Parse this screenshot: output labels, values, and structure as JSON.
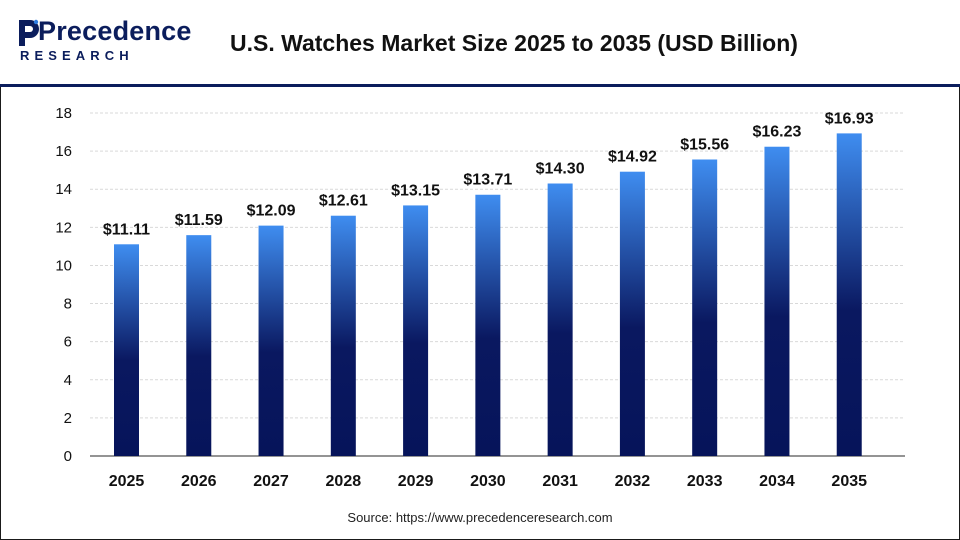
{
  "brand": {
    "name_main": "Precedence",
    "name_sub": "RESEARCH",
    "color": "#0b1d5c"
  },
  "title": "U.S. Watches Market Size 2025 to 2035 (USD Billion)",
  "source": "Source: https://www.precedenceresearch.com",
  "chart_data": {
    "type": "bar",
    "title": "U.S. Watches Market Size 2025 to 2035 (USD Billion)",
    "xlabel": "",
    "ylabel": "",
    "categories": [
      "2025",
      "2026",
      "2027",
      "2028",
      "2029",
      "2030",
      "2031",
      "2032",
      "2033",
      "2034",
      "2035"
    ],
    "values": [
      11.11,
      11.59,
      12.09,
      12.61,
      13.15,
      13.71,
      14.3,
      14.92,
      15.56,
      16.23,
      16.93
    ],
    "value_labels": [
      "$11.11",
      "$11.59",
      "$12.09",
      "$12.61",
      "$13.15",
      "$13.71",
      "$14.30",
      "$14.92",
      "$15.56",
      "$16.23",
      "$16.93"
    ],
    "ylim": [
      0,
      18
    ],
    "yticks": [
      0,
      2,
      4,
      6,
      8,
      10,
      12,
      14,
      16,
      18
    ],
    "grid": true,
    "bar_gradient": [
      "#3f8df0",
      "#0a1860",
      "#06145a"
    ]
  }
}
